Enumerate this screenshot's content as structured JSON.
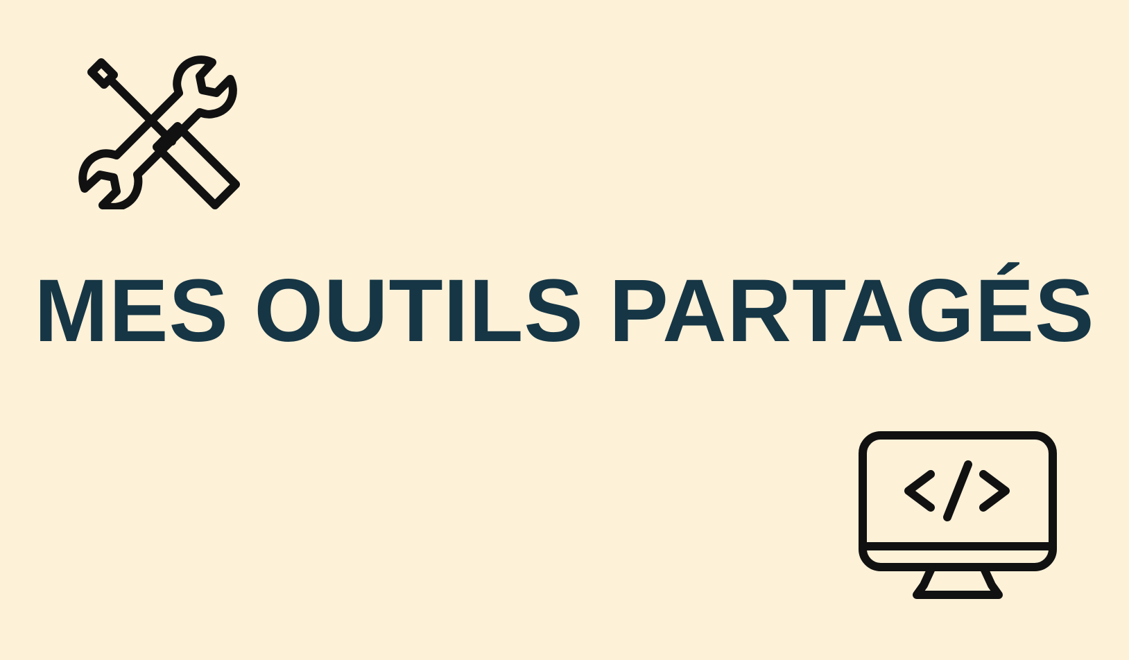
{
  "colors": {
    "background": "#FDF1D8",
    "title": "#163645",
    "icon_stroke": "#111111"
  },
  "icons": {
    "top_left": "tools-icon",
    "bottom_right": "monitor-code-icon"
  },
  "title": "MES OUTILS PARTAGÉS"
}
